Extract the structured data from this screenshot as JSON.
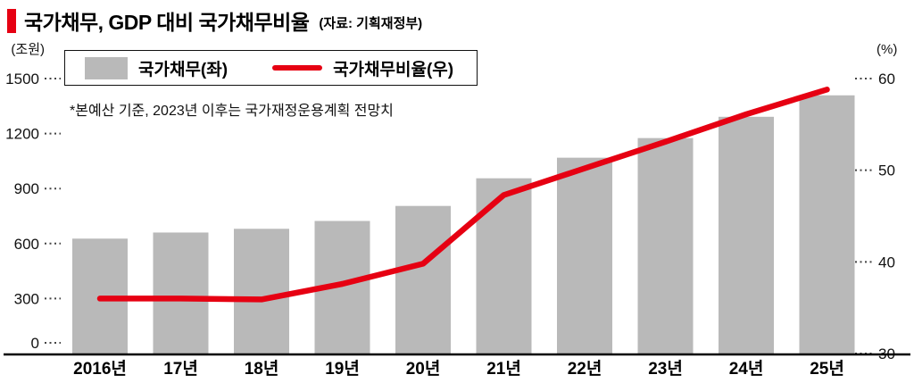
{
  "header": {
    "title": "국가채무, GDP 대비 국가채무비율",
    "source": "(자료: 기획재정부)"
  },
  "chart": {
    "note": "*본예산 기준, 2023년 이후는 국가재정운용계획 전망치",
    "legend": {
      "bar_label": "국가채무(좌)",
      "line_label": "국가채무비율(우)"
    }
  },
  "chart_data": {
    "type": "bar",
    "title": "국가채무, GDP 대비 국가채무비율",
    "source": "(자료: 기획재정부)",
    "note": "*본예산 기준, 2023년 이후는 국가재정운용계획 전망치",
    "categories": [
      "2016년",
      "17년",
      "18년",
      "19년",
      "20년",
      "21년",
      "22년",
      "23년",
      "24년",
      "25년"
    ],
    "series": [
      {
        "name": "국가채무(좌)",
        "type": "bar",
        "axis": "left",
        "unit": "조원",
        "color": "#b9b9b9",
        "values": [
          626.9,
          660.2,
          680.5,
          723.2,
          805.2,
          956.0,
          1068.3,
          1175.4,
          1291.5,
          1408.5
        ]
      },
      {
        "name": "국가채무비율(우)",
        "type": "line",
        "axis": "right",
        "unit": "%",
        "color": "#e60012",
        "values": [
          36.0,
          36.0,
          35.9,
          37.6,
          39.8,
          47.3,
          50.2,
          53.1,
          56.1,
          58.8
        ]
      }
    ],
    "left_axis": {
      "unit": "(조원)",
      "ticks": [
        0,
        300,
        600,
        900,
        1200,
        1500
      ],
      "range": [
        0,
        1500
      ]
    },
    "right_axis": {
      "unit": "(%)",
      "ticks": [
        30,
        40,
        50,
        60
      ],
      "range": [
        30,
        60
      ]
    },
    "legend_position": "top-left",
    "grid": "dotted tick marks on both axes only",
    "colors": {
      "bar": "#b9b9b9",
      "line": "#e60012",
      "accent": "#e60012",
      "axis_line": "#000000"
    }
  }
}
